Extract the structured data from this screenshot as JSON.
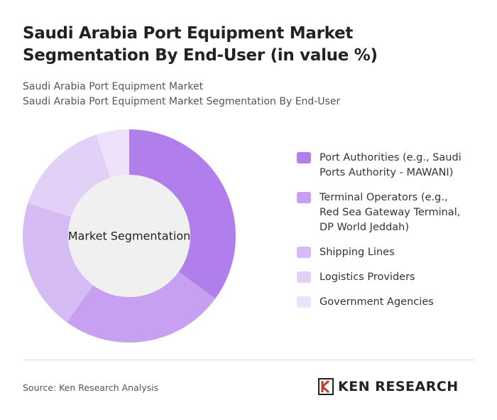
{
  "chart_data": {
    "type": "pie",
    "title": "Saudi Arabia Port Equipment Market Segmentation By End-User (in value %)",
    "subtitle": [
      "Saudi Arabia Port Equipment Market",
      "Saudi Arabia Port Equipment Market Segmentation By End-User"
    ],
    "center_label": "Market Segmentation",
    "categories": [
      "Port Authorities (e.g., Saudi Ports Authority - MAWANI)",
      "Terminal Operators (e.g., Red Sea Gateway Terminal, DP World Jeddah)",
      "Shipping Lines",
      "Logistics Providers",
      "Government Agencies"
    ],
    "values": [
      35,
      25,
      20,
      15,
      5
    ],
    "colors": [
      "#b17fec",
      "#c7a0f1",
      "#d6bcf4",
      "#e2d0f7",
      "#ede2fa"
    ]
  },
  "source": "Source: Ken Research Analysis",
  "logo": "KEN RESEARCH"
}
